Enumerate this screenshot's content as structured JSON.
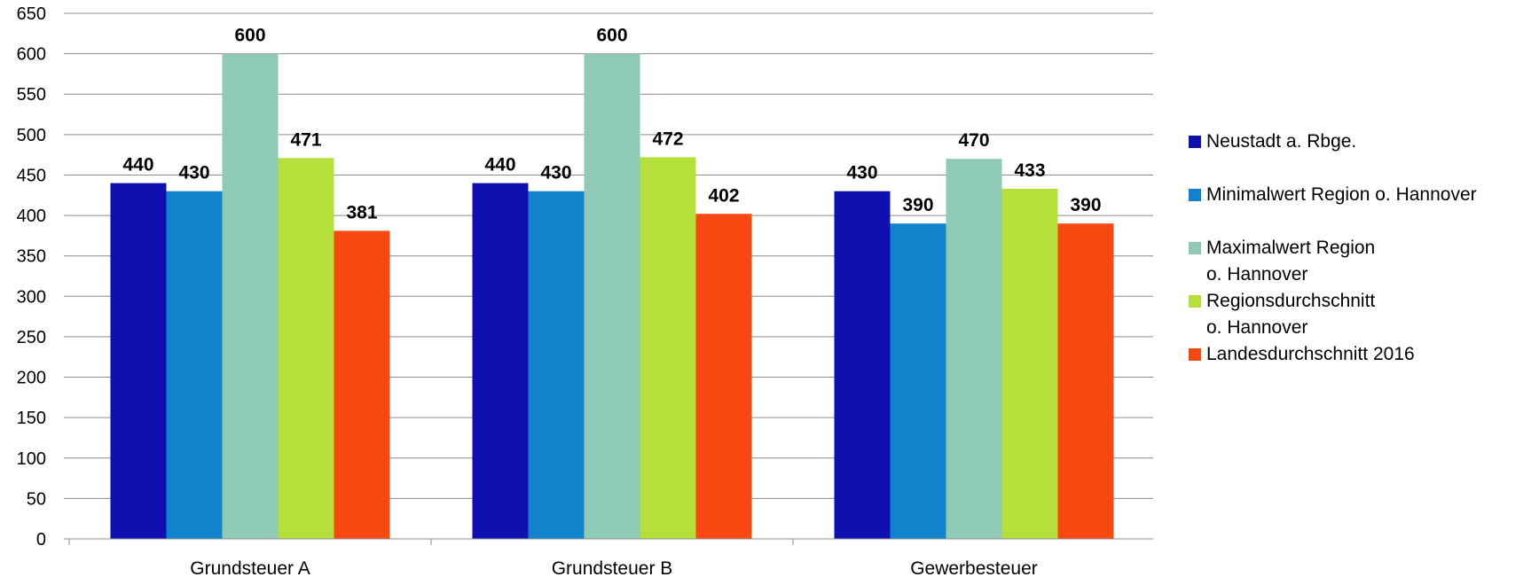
{
  "chart_data": {
    "type": "bar",
    "categories": [
      "Grundsteuer A",
      "Grundsteuer B",
      "Gewerbesteuer"
    ],
    "series": [
      {
        "name": "Neustadt a. Rbge.",
        "values": [
          440,
          440,
          430
        ],
        "color": "#1010B0"
      },
      {
        "name": "Minimalwert Region o. Hannover",
        "values": [
          430,
          430,
          390
        ],
        "color": "#1183CA"
      },
      {
        "name": "Maximalwert Region\no. Hannover",
        "values": [
          600,
          600,
          470
        ],
        "color": "#8FCAB4"
      },
      {
        "name": "Regionsdurchschnitt\no. Hannover",
        "values": [
          471,
          472,
          433
        ],
        "color": "#B5E03C"
      },
      {
        "name": "Landesdurchschnitt 2016",
        "values": [
          381,
          402,
          390
        ],
        "color": "#F94912"
      }
    ],
    "ylim": [
      0,
      650
    ],
    "yticks": [
      0,
      50,
      100,
      150,
      200,
      250,
      300,
      350,
      400,
      450,
      500,
      550,
      600,
      650
    ],
    "grid": true,
    "legend_position": "right",
    "data_labels": true,
    "title": "",
    "xlabel": "",
    "ylabel": ""
  }
}
